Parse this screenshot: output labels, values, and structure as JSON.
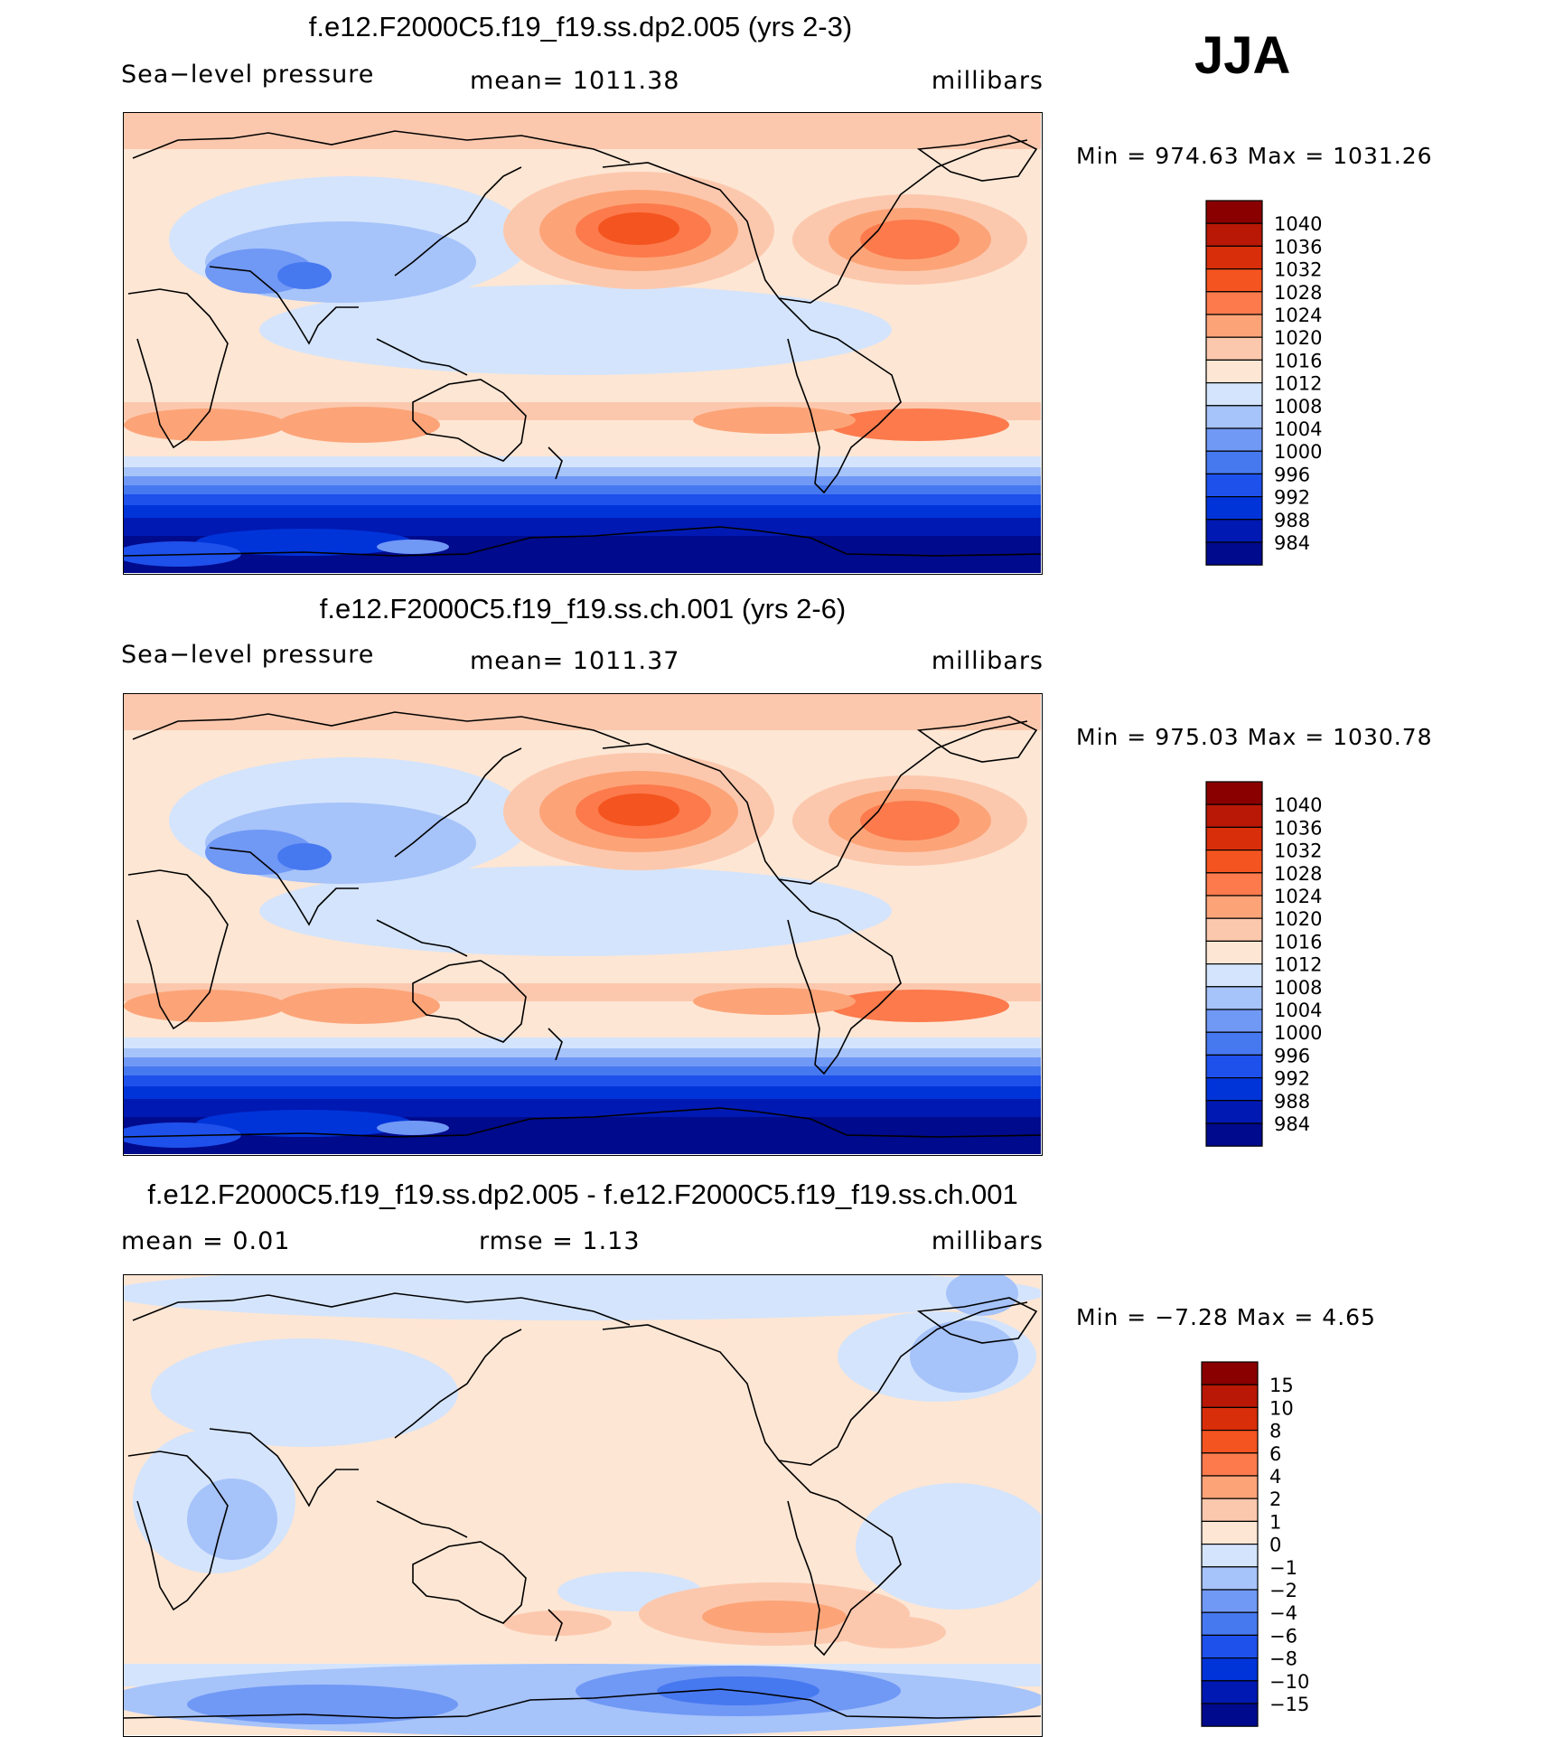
{
  "season": "JJA",
  "units": "millibars",
  "palette": {
    "abs": [
      "#000a8c",
      "#0019b3",
      "#0034d9",
      "#1e50eb",
      "#4678f0",
      "#7098f5",
      "#a6c3fa",
      "#d4e4fc",
      "#fde6d4",
      "#fcc8ad",
      "#fca478",
      "#fc7a4c",
      "#f4541f",
      "#d82e0a",
      "#b81805",
      "#8a0000"
    ],
    "diff": [
      "#000a8c",
      "#0019b3",
      "#0034d9",
      "#1e50eb",
      "#4678f0",
      "#7098f5",
      "#a6c3fa",
      "#d4e4fc",
      "#fde6d4",
      "#fcc8ad",
      "#fca478",
      "#fc7a4c",
      "#f4541f",
      "#d82e0a",
      "#b81805",
      "#8a0000"
    ]
  },
  "chart_data": [
    {
      "type": "heatmap",
      "title": "f.e12.F2000C5.f19_f19.ss.dp2.005 (yrs 2-3)",
      "variable": "Sea−level pressure",
      "mean_text": "mean=  1011.38",
      "units": "millibars",
      "min": 974.63,
      "max": 1031.26,
      "minmax_text": "Min  =  974.63  Max  =  1031.26",
      "levels": [
        "1040",
        "1036",
        "1032",
        "1028",
        "1024",
        "1020",
        "1016",
        "1012",
        "1008",
        "1004",
        "1000",
        "996",
        "992",
        "988",
        "984"
      ]
    },
    {
      "type": "heatmap",
      "title": "f.e12.F2000C5.f19_f19.ss.ch.001 (yrs 2-6)",
      "variable": "Sea−level pressure",
      "mean_text": "mean=  1011.37",
      "units": "millibars",
      "min": 975.03,
      "max": 1030.78,
      "minmax_text": "Min  =  975.03  Max  =  1030.78",
      "levels": [
        "1040",
        "1036",
        "1032",
        "1028",
        "1024",
        "1020",
        "1016",
        "1012",
        "1008",
        "1004",
        "1000",
        "996",
        "992",
        "988",
        "984"
      ]
    },
    {
      "type": "heatmap",
      "title": "f.e12.F2000C5.f19_f19.ss.dp2.005 - f.e12.F2000C5.f19_f19.ss.ch.001",
      "mean_text": "mean  =      0.01",
      "rmse_text": "rmse  =      1.13",
      "units": "millibars",
      "min": -7.28,
      "max": 4.65,
      "minmax_text": "Min  =    −7.28  Max  =      4.65",
      "levels": [
        "15",
        "10",
        "8",
        "6",
        "4",
        "2",
        "1",
        "0",
        "−1",
        "−2",
        "−4",
        "−6",
        "−8",
        "−10",
        "−15"
      ]
    }
  ]
}
